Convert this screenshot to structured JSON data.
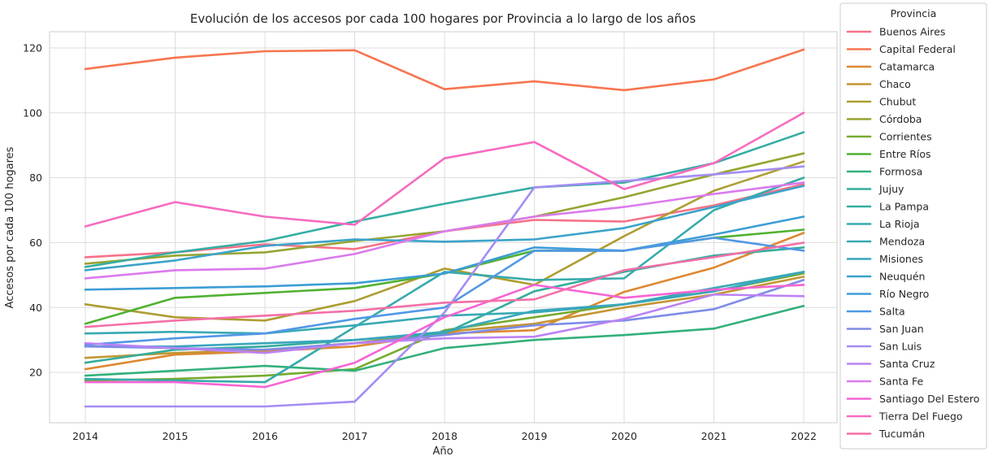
{
  "chart_data": {
    "type": "line",
    "title": "Evolución de los accesos por cada 100 hogares por Provincia a lo largo de los años",
    "xlabel": "Año",
    "ylabel": "Accesos por cada 100 hogares",
    "x": [
      2014,
      2015,
      2016,
      2017,
      2018,
      2019,
      2020,
      2021,
      2022
    ],
    "x_ticks": [
      "2014",
      "2015",
      "2016",
      "2017",
      "2018",
      "2019",
      "2020",
      "2021",
      "2022"
    ],
    "y_ticks": [
      "20",
      "40",
      "60",
      "80",
      "100",
      "120"
    ],
    "ylim": [
      4.5,
      125
    ],
    "grid": true,
    "legend": {
      "title": "Provincia",
      "placement": "outside-right"
    },
    "series": [
      {
        "name": "Buenos Aires",
        "color": "#f77189",
        "values": [
          55.5,
          57.0,
          59.5,
          58.0,
          63.5,
          67.0,
          66.5,
          71.5,
          78.0
        ]
      },
      {
        "name": "Capital Federal",
        "color": "#f7754f",
        "values": [
          113.5,
          117.0,
          119.0,
          119.3,
          107.3,
          109.7,
          107.0,
          110.3,
          119.5
        ]
      },
      {
        "name": "Catamarca",
        "color": "#dc8932",
        "values": [
          21.0,
          25.5,
          26.5,
          28.0,
          32.0,
          33.0,
          44.8,
          52.3,
          63.0
        ]
      },
      {
        "name": "Chaco",
        "color": "#c39532",
        "values": [
          24.5,
          26.0,
          27.0,
          29.0,
          32.5,
          35.0,
          40.0,
          44.0,
          49.5
        ]
      },
      {
        "name": "Chubut",
        "color": "#ae9d31",
        "values": [
          41.0,
          37.0,
          36.0,
          42.0,
          52.0,
          47.0,
          62.0,
          76.0,
          85.0
        ]
      },
      {
        "name": "Córdoba",
        "color": "#97a431",
        "values": [
          53.5,
          56.0,
          57.0,
          60.5,
          63.5,
          68.0,
          74.0,
          81.0,
          87.5
        ]
      },
      {
        "name": "Corrientes",
        "color": "#77ab31",
        "values": [
          17.5,
          18.0,
          19.0,
          21.0,
          33.0,
          37.0,
          41.0,
          45.0,
          50.5
        ]
      },
      {
        "name": "Entre Ríos",
        "color": "#50b131",
        "values": [
          35.0,
          43.0,
          44.5,
          46.0,
          50.5,
          57.5,
          57.5,
          61.5,
          64.0
        ]
      },
      {
        "name": "Formosa",
        "color": "#33b07a",
        "values": [
          19.0,
          20.5,
          22.0,
          20.5,
          27.5,
          30.0,
          31.5,
          33.5,
          40.5
        ]
      },
      {
        "name": "Jujuy",
        "color": "#35ad9c",
        "values": [
          23.0,
          27.0,
          28.0,
          30.0,
          32.0,
          45.0,
          51.0,
          56.0,
          58.5
        ]
      },
      {
        "name": "La Pampa",
        "color": "#36ada4",
        "values": [
          52.5,
          57.0,
          60.5,
          66.5,
          72.0,
          77.0,
          78.5,
          84.5,
          94.0
        ]
      },
      {
        "name": "La Rioja",
        "color": "#37aaac",
        "values": [
          18.0,
          17.5,
          17.0,
          34.0,
          51.0,
          48.5,
          49.0,
          70.0,
          80.0
        ]
      },
      {
        "name": "Mendoza",
        "color": "#38a9b4",
        "values": [
          32.0,
          32.5,
          32.0,
          34.5,
          37.5,
          38.5,
          41.0,
          46.0,
          51.0
        ]
      },
      {
        "name": "Misiones",
        "color": "#39a6bd",
        "values": [
          28.0,
          28.0,
          29.0,
          30.0,
          32.5,
          39.0,
          41.0,
          45.0,
          51.0
        ]
      },
      {
        "name": "Neuquén",
        "color": "#3ba3c9",
        "values": [
          51.5,
          54.5,
          59.0,
          61.0,
          60.3,
          61.0,
          64.5,
          71.0,
          77.5
        ]
      },
      {
        "name": "Río Negro",
        "color": "#3d9dd6",
        "values": [
          45.5,
          46.0,
          46.5,
          47.5,
          50.5,
          58.5,
          57.5,
          62.5,
          68.0
        ]
      },
      {
        "name": "Salta",
        "color": "#5097e6",
        "values": [
          28.5,
          30.5,
          32.0,
          36.5,
          40.0,
          57.5,
          57.5,
          61.5,
          57.5
        ]
      },
      {
        "name": "San Juan",
        "color": "#7e8ce7",
        "values": [
          28.0,
          27.5,
          27.0,
          29.0,
          31.5,
          34.5,
          36.0,
          39.5,
          48.5
        ]
      },
      {
        "name": "San Luis",
        "color": "#a48cf4",
        "values": [
          9.5,
          9.5,
          9.5,
          11.0,
          38.5,
          77.0,
          79.0,
          81.0,
          83.5
        ]
      },
      {
        "name": "Santa Cruz",
        "color": "#bb83f4",
        "values": [
          29.0,
          27.5,
          26.0,
          29.0,
          30.5,
          31.0,
          36.5,
          44.0,
          43.5
        ]
      },
      {
        "name": "Santa Fe",
        "color": "#da7aed",
        "values": [
          49.0,
          51.5,
          52.0,
          56.5,
          63.5,
          68.0,
          71.0,
          75.0,
          78.5
        ]
      },
      {
        "name": "Santiago Del Estero",
        "color": "#f564d4",
        "values": [
          17.0,
          17.0,
          15.5,
          23.0,
          37.0,
          47.0,
          43.0,
          45.5,
          47.0
        ]
      },
      {
        "name": "Tierra Del Fuego",
        "color": "#f66bbf",
        "values": [
          65.0,
          72.5,
          68.0,
          65.5,
          86.0,
          91.0,
          76.5,
          84.5,
          100.0
        ]
      },
      {
        "name": "Tucumán",
        "color": "#f46fa7",
        "values": [
          34.0,
          36.0,
          37.5,
          39.0,
          41.5,
          42.5,
          51.5,
          55.5,
          60.0
        ]
      }
    ]
  }
}
